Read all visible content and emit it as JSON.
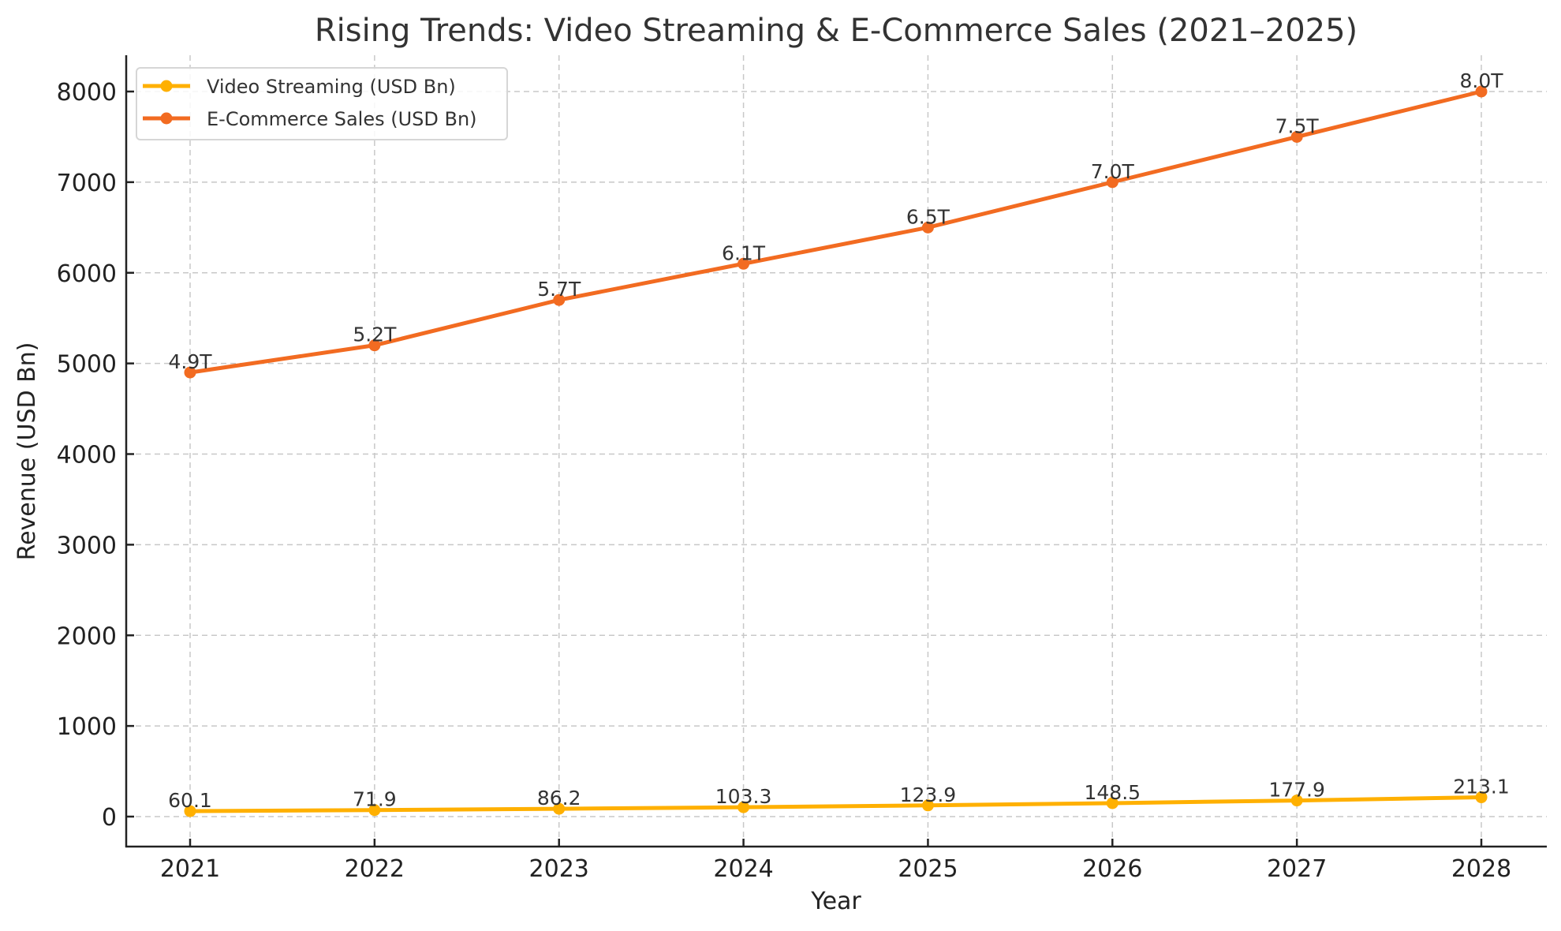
{
  "chart_data": {
    "type": "line",
    "title": "Rising Trends: Video Streaming & E-Commerce Sales (2021–2025)",
    "xlabel": "Year",
    "ylabel": "Revenue (USD Bn)",
    "x": [
      2021,
      2022,
      2023,
      2024,
      2025,
      2026,
      2027,
      2028
    ],
    "x_tick_labels": [
      "2021",
      "2022",
      "2023",
      "2024",
      "2025",
      "2026",
      "2027",
      "2028"
    ],
    "y_ticks": [
      0,
      1000,
      2000,
      3000,
      4000,
      5000,
      6000,
      7000,
      8000
    ],
    "y_tick_labels": [
      "0",
      "1000",
      "2000",
      "3000",
      "4000",
      "5000",
      "6000",
      "7000",
      "8000"
    ],
    "ylim": [
      -350,
      8380
    ],
    "xlim": [
      2020.65,
      2028.45
    ],
    "grid": true,
    "legend_position": "top-left",
    "series": [
      {
        "name": "Video Streaming (USD Bn)",
        "color": "#FFB000",
        "values": [
          60.1,
          71.9,
          86.2,
          103.3,
          123.9,
          148.5,
          177.9,
          213.1
        ],
        "labels": [
          "60.1",
          "71.9",
          "86.2",
          "103.3",
          "123.9",
          "148.5",
          "177.9",
          "213.1"
        ]
      },
      {
        "name": "E-Commerce Sales (USD Bn)",
        "color": "#F26B21",
        "values": [
          4900,
          5200,
          5700,
          6100,
          6500,
          7000,
          7500,
          8000
        ],
        "labels": [
          "4.9T",
          "5.2T",
          "5.7T",
          "6.1T",
          "6.5T",
          "7.0T",
          "7.5T",
          "8.0T"
        ]
      }
    ]
  }
}
